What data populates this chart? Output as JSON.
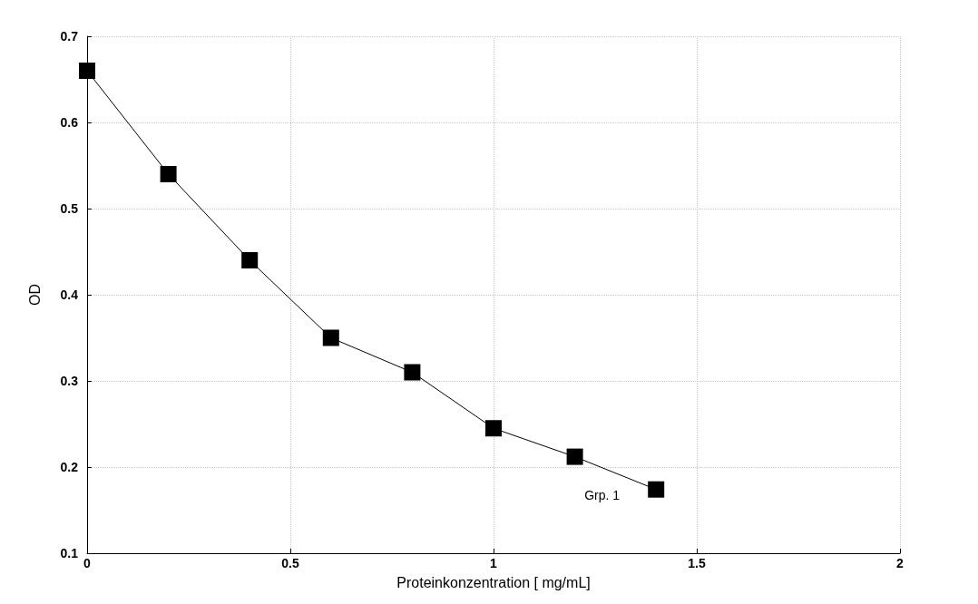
{
  "chart_data": {
    "type": "line",
    "xlabel": "Proteinkonzentration [ mg/mL]",
    "ylabel": "OD",
    "x": [
      0,
      0.2,
      0.4,
      0.6,
      0.8,
      1.0,
      1.2,
      1.4
    ],
    "series": [
      {
        "name": "Grp. 1",
        "color": "#000000",
        "values": [
          0.66,
          0.54,
          0.44,
          0.35,
          0.31,
          0.245,
          0.212,
          0.174
        ]
      }
    ],
    "xlim": [
      0,
      2
    ],
    "xticks": [
      0,
      0.5,
      1,
      1.5,
      2
    ],
    "ylim": [
      0.1,
      0.7
    ],
    "yticks": [
      0.1,
      0.2,
      0.3,
      0.4,
      0.5,
      0.6,
      0.7
    ],
    "grid": true,
    "legend": false,
    "marker": "square",
    "line_style": "solid"
  }
}
